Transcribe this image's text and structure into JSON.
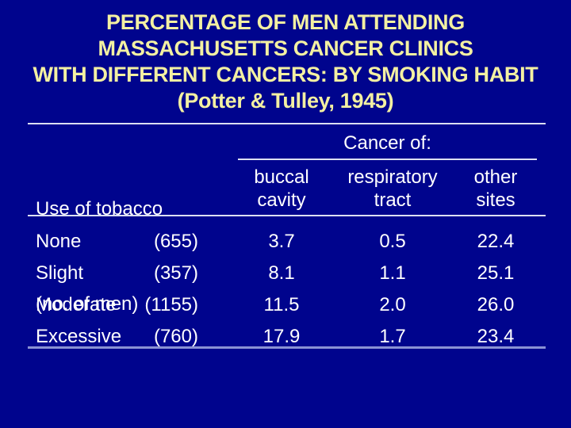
{
  "colors": {
    "background": "#00048d",
    "title_text": "#f3f0a2",
    "table_text": "#ffffff",
    "rule_light": "#dcdff2",
    "rule_accent": "#8a92d4"
  },
  "slide": {
    "title_lines": [
      "PERCENTAGE OF MEN ATTENDING",
      "MASSACHUSETTS CANCER CLINICS",
      "WITH DIFFERENT CANCERS: BY SMOKING HABIT",
      "(Potter & Tulley, 1945)"
    ]
  },
  "table": {
    "stub_header_line1": "Use of tobacco",
    "stub_header_line2": "(no. of men)",
    "group_header": "Cancer of:",
    "columns": [
      {
        "line1": "buccal",
        "line2": "cavity"
      },
      {
        "line1": "respiratory",
        "line2": "tract"
      },
      {
        "line1": "other",
        "line2": "sites"
      }
    ],
    "rows": [
      {
        "label": "None",
        "count": "(655)",
        "buccal": "3.7",
        "respiratory": "0.5",
        "other": "22.4"
      },
      {
        "label": "Slight",
        "count": "(357)",
        "buccal": "8.1",
        "respiratory": "1.1",
        "other": "25.1"
      },
      {
        "label": "Moderate",
        "count": "(1155)",
        "buccal": "11.5",
        "respiratory": "2.0",
        "other": "26.0"
      },
      {
        "label": "Excessive",
        "count": "(760)",
        "buccal": "17.9",
        "respiratory": "1.7",
        "other": "23.4"
      }
    ]
  },
  "chart_data": {
    "type": "table",
    "title": "PERCENTAGE OF MEN ATTENDING MASSACHUSETTS CANCER CLINICS WITH DIFFERENT CANCERS: BY SMOKING HABIT (Potter & Tulley, 1945)",
    "stub_column": "Use of tobacco (no. of men)",
    "column_group": "Cancer of:",
    "columns": [
      "buccal cavity",
      "respiratory tract",
      "other sites"
    ],
    "rows": [
      {
        "use_of_tobacco": "None",
        "no_of_men": 655,
        "buccal_cavity": 3.7,
        "respiratory_tract": 0.5,
        "other_sites": 22.4
      },
      {
        "use_of_tobacco": "Slight",
        "no_of_men": 357,
        "buccal_cavity": 8.1,
        "respiratory_tract": 1.1,
        "other_sites": 25.1
      },
      {
        "use_of_tobacco": "Moderate",
        "no_of_men": 1155,
        "buccal_cavity": 11.5,
        "respiratory_tract": 2.0,
        "other_sites": 26.0
      },
      {
        "use_of_tobacco": "Excessive",
        "no_of_men": 760,
        "buccal_cavity": 17.9,
        "respiratory_tract": 1.7,
        "other_sites": 23.4
      }
    ],
    "values_are": "percent of men with each cancer"
  }
}
